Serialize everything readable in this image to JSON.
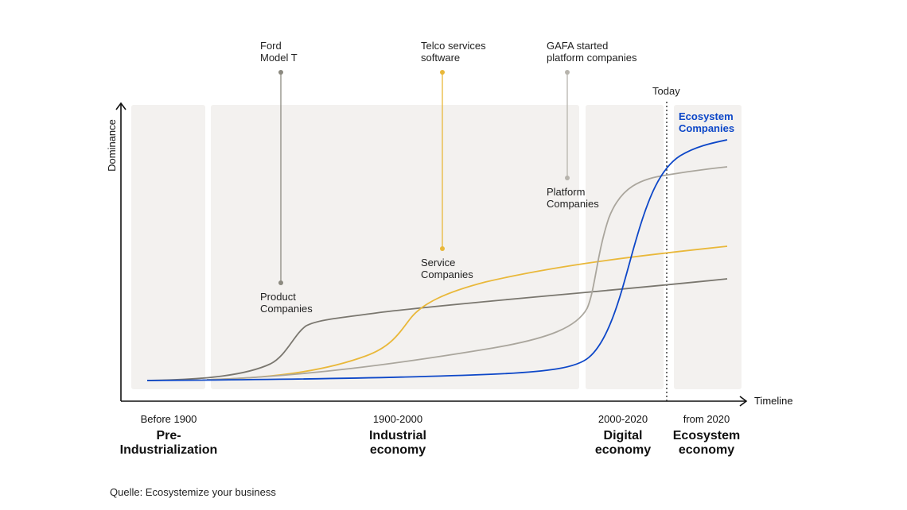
{
  "axes": {
    "x_label": "Timeline",
    "y_label": "Dominance"
  },
  "today_label": "Today",
  "annotations": [
    {
      "line1": "Ford",
      "line2": "Model T",
      "color": "#8c8a80"
    },
    {
      "line1": "Telco services",
      "line2": "software",
      "color": "#e9b83a"
    },
    {
      "line1": "GAFA started",
      "line2": "platform companies",
      "color": "#b7b4ad"
    }
  ],
  "series_labels": {
    "product": {
      "line1": "Product",
      "line2": "Companies",
      "color": "#7a776f"
    },
    "service": {
      "line1": "Service",
      "line2": "Companies",
      "color": "#e9b83a"
    },
    "platform": {
      "line1": "Platform",
      "line2": "Companies",
      "color": "#aaa69d"
    },
    "ecosystem": {
      "line1": "Ecosystem",
      "line2": "Companies",
      "color": "#0d47c8"
    }
  },
  "eras": [
    {
      "period": "Before 1900",
      "name1": "Pre-",
      "name2": "Industrialization"
    },
    {
      "period": "1900-2000",
      "name1": "Industrial",
      "name2": "economy"
    },
    {
      "period": "2000-2020",
      "name1": "Digital",
      "name2": "economy"
    },
    {
      "period": "from 2020",
      "name1": "Ecosystem",
      "name2": "economy"
    }
  ],
  "source": "Quelle: Ecosystemize your business"
}
